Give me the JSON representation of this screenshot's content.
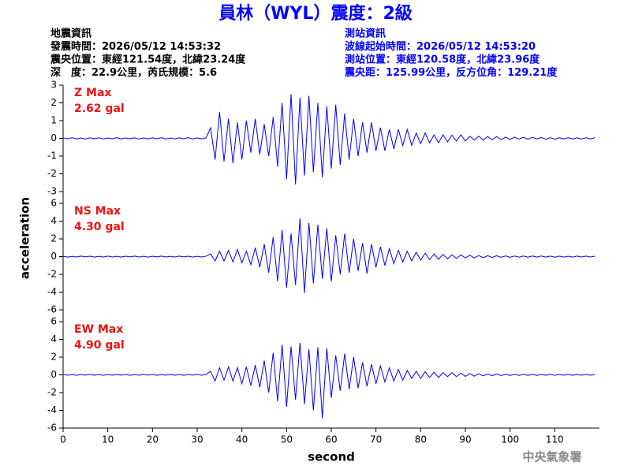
{
  "chart_data": {
    "type": "line",
    "title": "員林（WYL）震度：2級",
    "info_left": [
      "地震資訊",
      "發震時間：2026/05/12 14:53:32",
      "震央位置：東經121.54度，北緯23.24度",
      "深　度：22.9公里，芮氏規模：5.6"
    ],
    "info_right": [
      "測站資訊",
      "波線起始時間：2026/05/12 14:53:20",
      "測站位置：東經120.58度，北緯23.96度",
      "震央距：125.99公里，反方位角：129.21度"
    ],
    "y_label": "acceleration",
    "x_label": "second",
    "credit": "中央氣象署",
    "xlim": [
      0,
      120
    ],
    "xticks": [
      0,
      10,
      20,
      30,
      40,
      50,
      60,
      70,
      80,
      90,
      100,
      110
    ],
    "x": [
      0,
      1,
      2,
      3,
      4,
      5,
      6,
      7,
      8,
      9,
      10,
      11,
      12,
      13,
      14,
      15,
      16,
      17,
      18,
      19,
      20,
      21,
      22,
      23,
      24,
      25,
      26,
      27,
      28,
      29,
      30,
      31,
      32,
      33,
      34,
      35,
      36,
      37,
      38,
      39,
      40,
      41,
      42,
      43,
      44,
      45,
      46,
      47,
      48,
      49,
      50,
      51,
      52,
      53,
      54,
      55,
      56,
      57,
      58,
      59,
      60,
      61,
      62,
      63,
      64,
      65,
      66,
      67,
      68,
      69,
      70,
      71,
      72,
      73,
      74,
      75,
      76,
      77,
      78,
      79,
      80,
      81,
      82,
      83,
      84,
      85,
      86,
      87,
      88,
      89,
      90,
      91,
      92,
      93,
      94,
      95,
      96,
      97,
      98,
      99,
      100,
      101,
      102,
      103,
      104,
      105,
      106,
      107,
      108,
      109,
      110,
      111,
      112,
      113,
      114,
      115,
      116,
      117,
      118,
      119
    ],
    "series": [
      {
        "name": "Z Max",
        "max_label": "2.62 gal",
        "color": "#0000ff",
        "ylim": [
          -3,
          3
        ],
        "yticks": [
          3,
          2,
          1,
          0,
          -1,
          -2,
          -3
        ],
        "values": [
          0.03,
          -0.02,
          0.04,
          -0.03,
          0.02,
          -0.04,
          0.03,
          -0.02,
          0.03,
          -0.03,
          0.02,
          -0.02,
          0.04,
          -0.03,
          0.02,
          -0.02,
          0.03,
          -0.04,
          0.02,
          -0.03,
          0.03,
          -0.02,
          0.04,
          -0.03,
          0.02,
          -0.03,
          0.03,
          -0.02,
          0.04,
          -0.03,
          0.02,
          -0.03,
          0.03,
          0.6,
          -1.2,
          1.5,
          -1.3,
          1.1,
          -1.4,
          0.9,
          -1.2,
          1.0,
          -0.8,
          1.1,
          -0.9,
          0.8,
          -1.0,
          1.2,
          -1.6,
          2.0,
          -2.3,
          2.5,
          -2.6,
          2.3,
          -2.1,
          2.4,
          -1.9,
          2.0,
          -2.2,
          1.8,
          -1.7,
          1.9,
          -1.5,
          1.4,
          -1.2,
          1.1,
          -1.0,
          0.9,
          -0.8,
          0.9,
          -0.7,
          0.6,
          -0.7,
          0.5,
          -0.6,
          0.5,
          -0.4,
          0.5,
          -0.4,
          0.3,
          -0.3,
          0.3,
          -0.25,
          0.2,
          -0.25,
          0.2,
          -0.2,
          0.18,
          -0.15,
          0.2,
          -0.15,
          0.12,
          -0.1,
          0.12,
          -0.1,
          0.1,
          -0.08,
          0.1,
          -0.08,
          0.07,
          -0.06,
          0.07,
          -0.05,
          0.06,
          -0.05,
          0.06,
          -0.04,
          0.05,
          -0.05,
          0.04,
          -0.05,
          0.04,
          -0.03,
          0.04,
          -0.04,
          0.03,
          -0.04,
          0.03,
          -0.03,
          0.04
        ]
      },
      {
        "name": "NS Max",
        "max_label": "4.30 gal",
        "color": "#0000ff",
        "ylim": [
          -6,
          6
        ],
        "yticks": [
          6,
          4,
          2,
          0,
          -2,
          -4,
          -6
        ],
        "values": [
          0.04,
          -0.05,
          0.03,
          -0.04,
          0.05,
          -0.03,
          0.04,
          -0.05,
          0.03,
          -0.04,
          0.05,
          -0.04,
          0.03,
          -0.05,
          0.04,
          -0.03,
          0.05,
          -0.04,
          0.03,
          -0.05,
          0.04,
          -0.03,
          0.05,
          -0.04,
          0.03,
          -0.04,
          0.05,
          -0.03,
          0.04,
          -0.05,
          0.03,
          -0.04,
          0.05,
          0.3,
          -0.5,
          0.6,
          -0.5,
          0.7,
          -0.6,
          0.8,
          -0.7,
          0.6,
          -0.9,
          1.0,
          -1.2,
          1.4,
          -1.8,
          2.2,
          -2.8,
          3.0,
          -3.5,
          2.6,
          -3.2,
          4.3,
          -4.1,
          3.8,
          -3.0,
          3.6,
          -2.5,
          3.2,
          -2.8,
          2.4,
          -2.0,
          2.6,
          -1.8,
          2.0,
          -1.6,
          1.5,
          -1.9,
          1.4,
          -1.2,
          1.1,
          -1.0,
          0.9,
          -0.8,
          0.7,
          -0.6,
          0.6,
          -0.5,
          0.5,
          -0.4,
          0.4,
          -0.35,
          0.3,
          -0.3,
          0.25,
          -0.25,
          0.2,
          -0.2,
          0.2,
          -0.15,
          0.15,
          -0.15,
          0.12,
          -0.12,
          0.1,
          -0.1,
          0.1,
          -0.08,
          0.08,
          -0.08,
          0.07,
          -0.07,
          0.06,
          -0.07,
          0.06,
          -0.05,
          0.06,
          -0.05,
          0.05,
          -0.06,
          0.05,
          -0.05,
          0.04,
          -0.05,
          0.05,
          -0.04,
          0.05,
          -0.04,
          0.04
        ]
      },
      {
        "name": "EW Max",
        "max_label": "4.90 gal",
        "color": "#0000ff",
        "ylim": [
          -6,
          6
        ],
        "yticks": [
          6,
          4,
          2,
          0,
          -2,
          -4,
          -6
        ],
        "values": [
          0.05,
          -0.04,
          0.03,
          -0.05,
          0.04,
          -0.03,
          0.05,
          -0.04,
          0.03,
          -0.05,
          0.04,
          -0.04,
          0.05,
          -0.03,
          0.04,
          -0.05,
          0.03,
          -0.04,
          0.05,
          -0.03,
          0.04,
          -0.05,
          0.03,
          -0.04,
          0.05,
          -0.04,
          0.03,
          -0.05,
          0.04,
          -0.03,
          0.05,
          -0.04,
          0.04,
          0.4,
          -0.7,
          0.8,
          -0.6,
          0.9,
          -0.7,
          0.8,
          -1.0,
          0.9,
          -1.2,
          1.1,
          -1.4,
          1.6,
          -2.0,
          2.5,
          -3.0,
          3.4,
          -3.6,
          3.2,
          -2.8,
          3.6,
          -3.3,
          2.9,
          -4.0,
          3.1,
          -4.9,
          3.0,
          -2.6,
          2.2,
          -1.8,
          2.4,
          -1.6,
          2.0,
          -1.5,
          1.4,
          -1.3,
          1.2,
          -1.0,
          1.0,
          -0.8,
          0.8,
          -0.7,
          0.6,
          -0.6,
          0.5,
          -0.4,
          0.4,
          -0.4,
          0.35,
          -0.3,
          0.3,
          -0.3,
          0.25,
          -0.2,
          0.25,
          -0.2,
          0.18,
          -0.18,
          0.15,
          -0.15,
          0.12,
          -0.12,
          0.1,
          -0.1,
          0.1,
          -0.09,
          0.08,
          -0.08,
          0.07,
          -0.07,
          0.07,
          -0.06,
          0.06,
          -0.06,
          0.05,
          -0.05,
          0.06,
          -0.05,
          0.05,
          -0.04,
          0.05,
          -0.05,
          0.04,
          -0.04,
          0.05,
          -0.04,
          0.04
        ]
      }
    ]
  }
}
